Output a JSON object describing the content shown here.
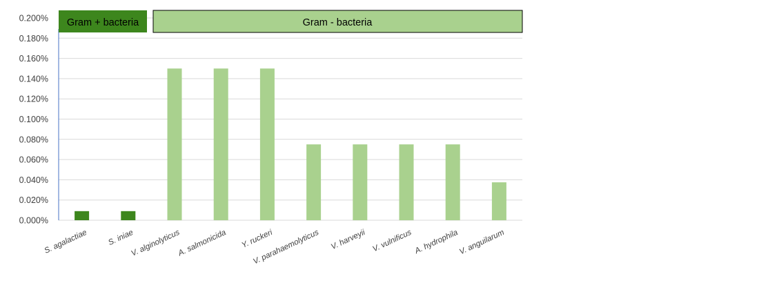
{
  "chart_data": {
    "type": "bar",
    "categories": [
      "S. agalactiae",
      "S.  iniae",
      "V. alginolyticus",
      "A. salmonicida",
      "Y. ruckeri",
      "V. parahaemolyticus",
      "V. harveyii",
      "V. vulnificus",
      "A. hydrophila",
      "V. anguilarum"
    ],
    "values": [
      0.009,
      0.009,
      0.15,
      0.15,
      0.15,
      0.075,
      0.075,
      0.075,
      0.075,
      0.0375
    ],
    "value_unit": "percent",
    "bar_groups": [
      "gram_positive",
      "gram_positive",
      "gram_negative",
      "gram_negative",
      "gram_negative",
      "gram_negative",
      "gram_negative",
      "gram_negative",
      "gram_negative",
      "gram_negative"
    ],
    "ylim": [
      0,
      0.2
    ],
    "yticks": [
      "0.000%",
      "0.020%",
      "0.040%",
      "0.060%",
      "0.080%",
      "0.100%",
      "0.120%",
      "0.140%",
      "0.160%",
      "0.180%",
      "0.200%"
    ],
    "grid": true,
    "title": "",
    "xlabel": "",
    "ylabel": ""
  },
  "groups": {
    "gram_positive": {
      "label": "Gram + bacteria",
      "color": "#3d861d"
    },
    "gram_negative": {
      "label": "Gram - bacteria",
      "color": "#a9d18e"
    }
  },
  "colors": {
    "grid": "#d9d9d9",
    "axis": "#4472c4",
    "text": "#404040"
  }
}
